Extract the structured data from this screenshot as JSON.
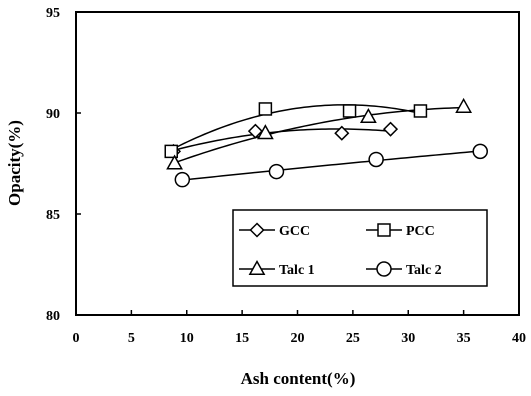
{
  "chart_data": {
    "type": "line",
    "xlabel": "Ash content(%)",
    "ylabel": "Opacity(%)",
    "xlim": [
      0,
      40
    ],
    "ylim": [
      80,
      95
    ],
    "x_ticks": [
      "0",
      "5",
      "10",
      "15",
      "20",
      "25",
      "30",
      "35",
      "40"
    ],
    "y_ticks": [
      "80",
      "85",
      "90",
      "95"
    ],
    "grid": false,
    "legend_position": "bottom-right",
    "series": [
      {
        "name": "GCC",
        "marker": "diamond",
        "x": [
          8.8,
          16.2,
          24.0,
          28.4
        ],
        "y": [
          88.1,
          89.1,
          89.0,
          89.2
        ]
      },
      {
        "name": "PCC",
        "marker": "square",
        "x": [
          8.6,
          17.1,
          24.7,
          31.1
        ],
        "y": [
          88.1,
          90.2,
          90.1,
          90.1
        ]
      },
      {
        "name": "Talc 1",
        "marker": "triangle",
        "x": [
          8.9,
          17.1,
          26.4,
          35.0
        ],
        "y": [
          87.5,
          89.0,
          89.8,
          90.3
        ]
      },
      {
        "name": "Talc 2",
        "marker": "circle",
        "x": [
          9.6,
          18.1,
          27.1,
          36.5
        ],
        "y": [
          86.7,
          87.1,
          87.7,
          88.1
        ]
      }
    ]
  }
}
